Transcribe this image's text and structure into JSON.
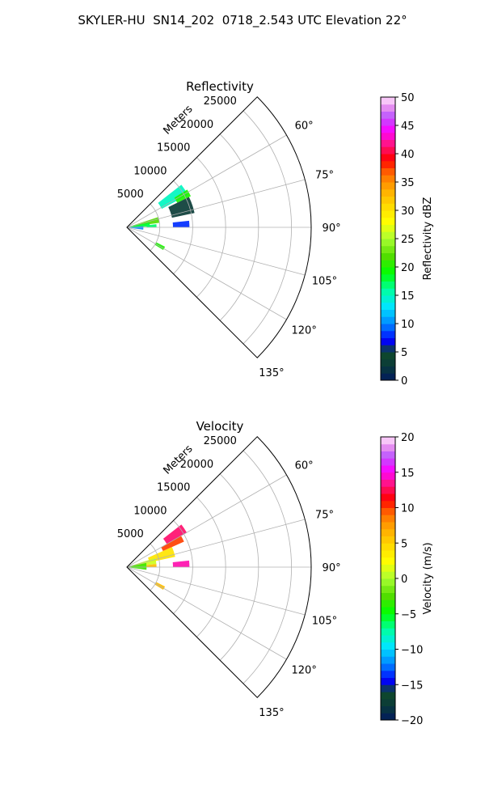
{
  "title": "SKYLER-HU  SN14_202  0718_2.543 UTC Elevation 22°",
  "chart_data": [
    {
      "type": "polar-sector-heatmap",
      "title": "Reflectivity",
      "radial_label": "Meters",
      "radial_ticks": [
        "5000",
        "10000",
        "15000",
        "20000",
        "25000"
      ],
      "radial_tick_values": [
        5000,
        10000,
        15000,
        20000,
        25000
      ],
      "radial_max": 28000,
      "angle_ticks": [
        "60°",
        "75°",
        "90°",
        "105°",
        "120°",
        "135°"
      ],
      "angle_tick_values": [
        60,
        75,
        90,
        105,
        120,
        135
      ],
      "angle_range": [
        45,
        135
      ],
      "grid": true,
      "colorbar": {
        "label": "Reflectivity dBZ",
        "min": 0,
        "max": 50,
        "ticks": [
          "0",
          "5",
          "10",
          "15",
          "20",
          "25",
          "30",
          "35",
          "40",
          "45",
          "50"
        ],
        "tick_values": [
          0,
          5,
          10,
          15,
          20,
          25,
          30,
          35,
          40,
          45,
          50
        ]
      },
      "echoes": [
        {
          "az_start": 52,
          "az_end": 62,
          "r_start": 6000,
          "r_end": 10500,
          "value": 15
        },
        {
          "az_start": 58,
          "az_end": 64,
          "r_start": 8500,
          "r_end": 10800,
          "value": 20
        },
        {
          "az_start": 64,
          "az_end": 78,
          "r_start": 7000,
          "r_end": 10500,
          "value": 3
        },
        {
          "az_start": 72,
          "az_end": 82,
          "r_start": 1000,
          "r_end": 5000,
          "value": 22
        },
        {
          "az_start": 78,
          "az_end": 88,
          "r_start": 500,
          "r_end": 3500,
          "value": 18
        },
        {
          "az_start": 86,
          "az_end": 98,
          "r_start": 300,
          "r_end": 2500,
          "value": 10
        },
        {
          "az_start": 84,
          "az_end": 90,
          "r_start": 3000,
          "r_end": 4500,
          "value": 17
        },
        {
          "az_start": 84,
          "az_end": 90,
          "r_start": 7000,
          "r_end": 9500,
          "value": 8
        },
        {
          "az_start": 117,
          "az_end": 122,
          "r_start": 5000,
          "r_end": 6500,
          "value": 20
        }
      ]
    },
    {
      "type": "polar-sector-heatmap",
      "title": "Velocity",
      "radial_label": "Meters",
      "radial_ticks": [
        "5000",
        "10000",
        "15000",
        "20000",
        "25000"
      ],
      "radial_tick_values": [
        5000,
        10000,
        15000,
        20000,
        25000
      ],
      "radial_max": 28000,
      "angle_ticks": [
        "60°",
        "75°",
        "90°",
        "105°",
        "120°",
        "135°"
      ],
      "angle_tick_values": [
        60,
        75,
        90,
        105,
        120,
        135
      ],
      "angle_range": [
        45,
        135
      ],
      "grid": true,
      "colorbar": {
        "label": "Velocity (m/s)",
        "min": -20,
        "max": 20,
        "ticks": [
          "−20",
          "−15",
          "−10",
          "−5",
          "0",
          "5",
          "10",
          "15",
          "20"
        ],
        "tick_values": [
          -20,
          -15,
          -10,
          -5,
          0,
          5,
          10,
          15,
          20
        ]
      },
      "echoes": [
        {
          "az_start": 52,
          "az_end": 60,
          "r_start": 7000,
          "r_end": 10500,
          "value": 13
        },
        {
          "az_start": 60,
          "az_end": 66,
          "r_start": 6000,
          "r_end": 9500,
          "value": 10
        },
        {
          "az_start": 66,
          "az_end": 78,
          "r_start": 3500,
          "r_end": 7500,
          "value": 4
        },
        {
          "az_start": 72,
          "az_end": 84,
          "r_start": 800,
          "r_end": 4500,
          "value": 1
        },
        {
          "az_start": 78,
          "az_end": 98,
          "r_start": 200,
          "r_end": 3000,
          "value": -3
        },
        {
          "az_start": 84,
          "az_end": 90,
          "r_start": 3000,
          "r_end": 4500,
          "value": 6
        },
        {
          "az_start": 84,
          "az_end": 90,
          "r_start": 7000,
          "r_end": 9500,
          "value": 14
        },
        {
          "az_start": 117,
          "az_end": 122,
          "r_start": 5000,
          "r_end": 6500,
          "value": 6
        }
      ]
    }
  ]
}
